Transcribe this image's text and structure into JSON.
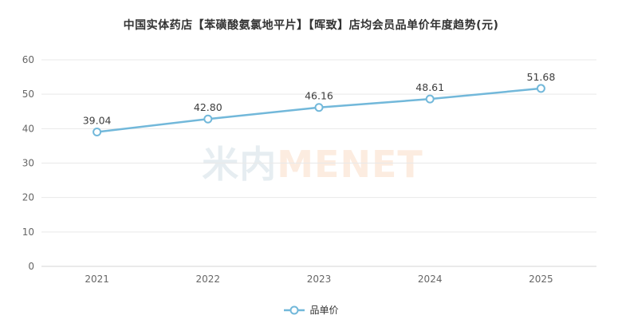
{
  "title": "中国实体药店【苯磺酸氨氯地平片】【晖致】店均会员品单价年度趋势(元)",
  "watermark": {
    "cn": "米内",
    "en": "MENET"
  },
  "legend": {
    "position": "bottom",
    "items": [
      {
        "label": "品单价",
        "color": "#72b8da"
      }
    ]
  },
  "chart_data": {
    "type": "line",
    "title": "中国实体药店【苯磺酸氨氯地平片】【晖致】店均会员品单价年度趋势(元)",
    "categories": [
      "2021",
      "2022",
      "2023",
      "2024",
      "2025"
    ],
    "series": [
      {
        "name": "品单价",
        "values": [
          39.04,
          42.8,
          46.16,
          48.61,
          51.68
        ],
        "labels": [
          "39.04",
          "42.80",
          "46.16",
          "48.61",
          "51.68"
        ]
      }
    ],
    "xlabel": "",
    "ylabel": "",
    "ylim": [
      0,
      60
    ],
    "y_ticks": [
      0,
      10,
      20,
      30,
      40,
      50,
      60
    ],
    "grid": "horizontal",
    "legend_position": "bottom-center",
    "marker": "open-circle",
    "colors": {
      "line": "#72b8da",
      "marker_fill": "#ffffff",
      "grid": "#e9e9e9",
      "axis": "#d4d4d4",
      "tick_label": "#666666",
      "data_label": "#3d3d3d",
      "title": "#333333"
    }
  }
}
